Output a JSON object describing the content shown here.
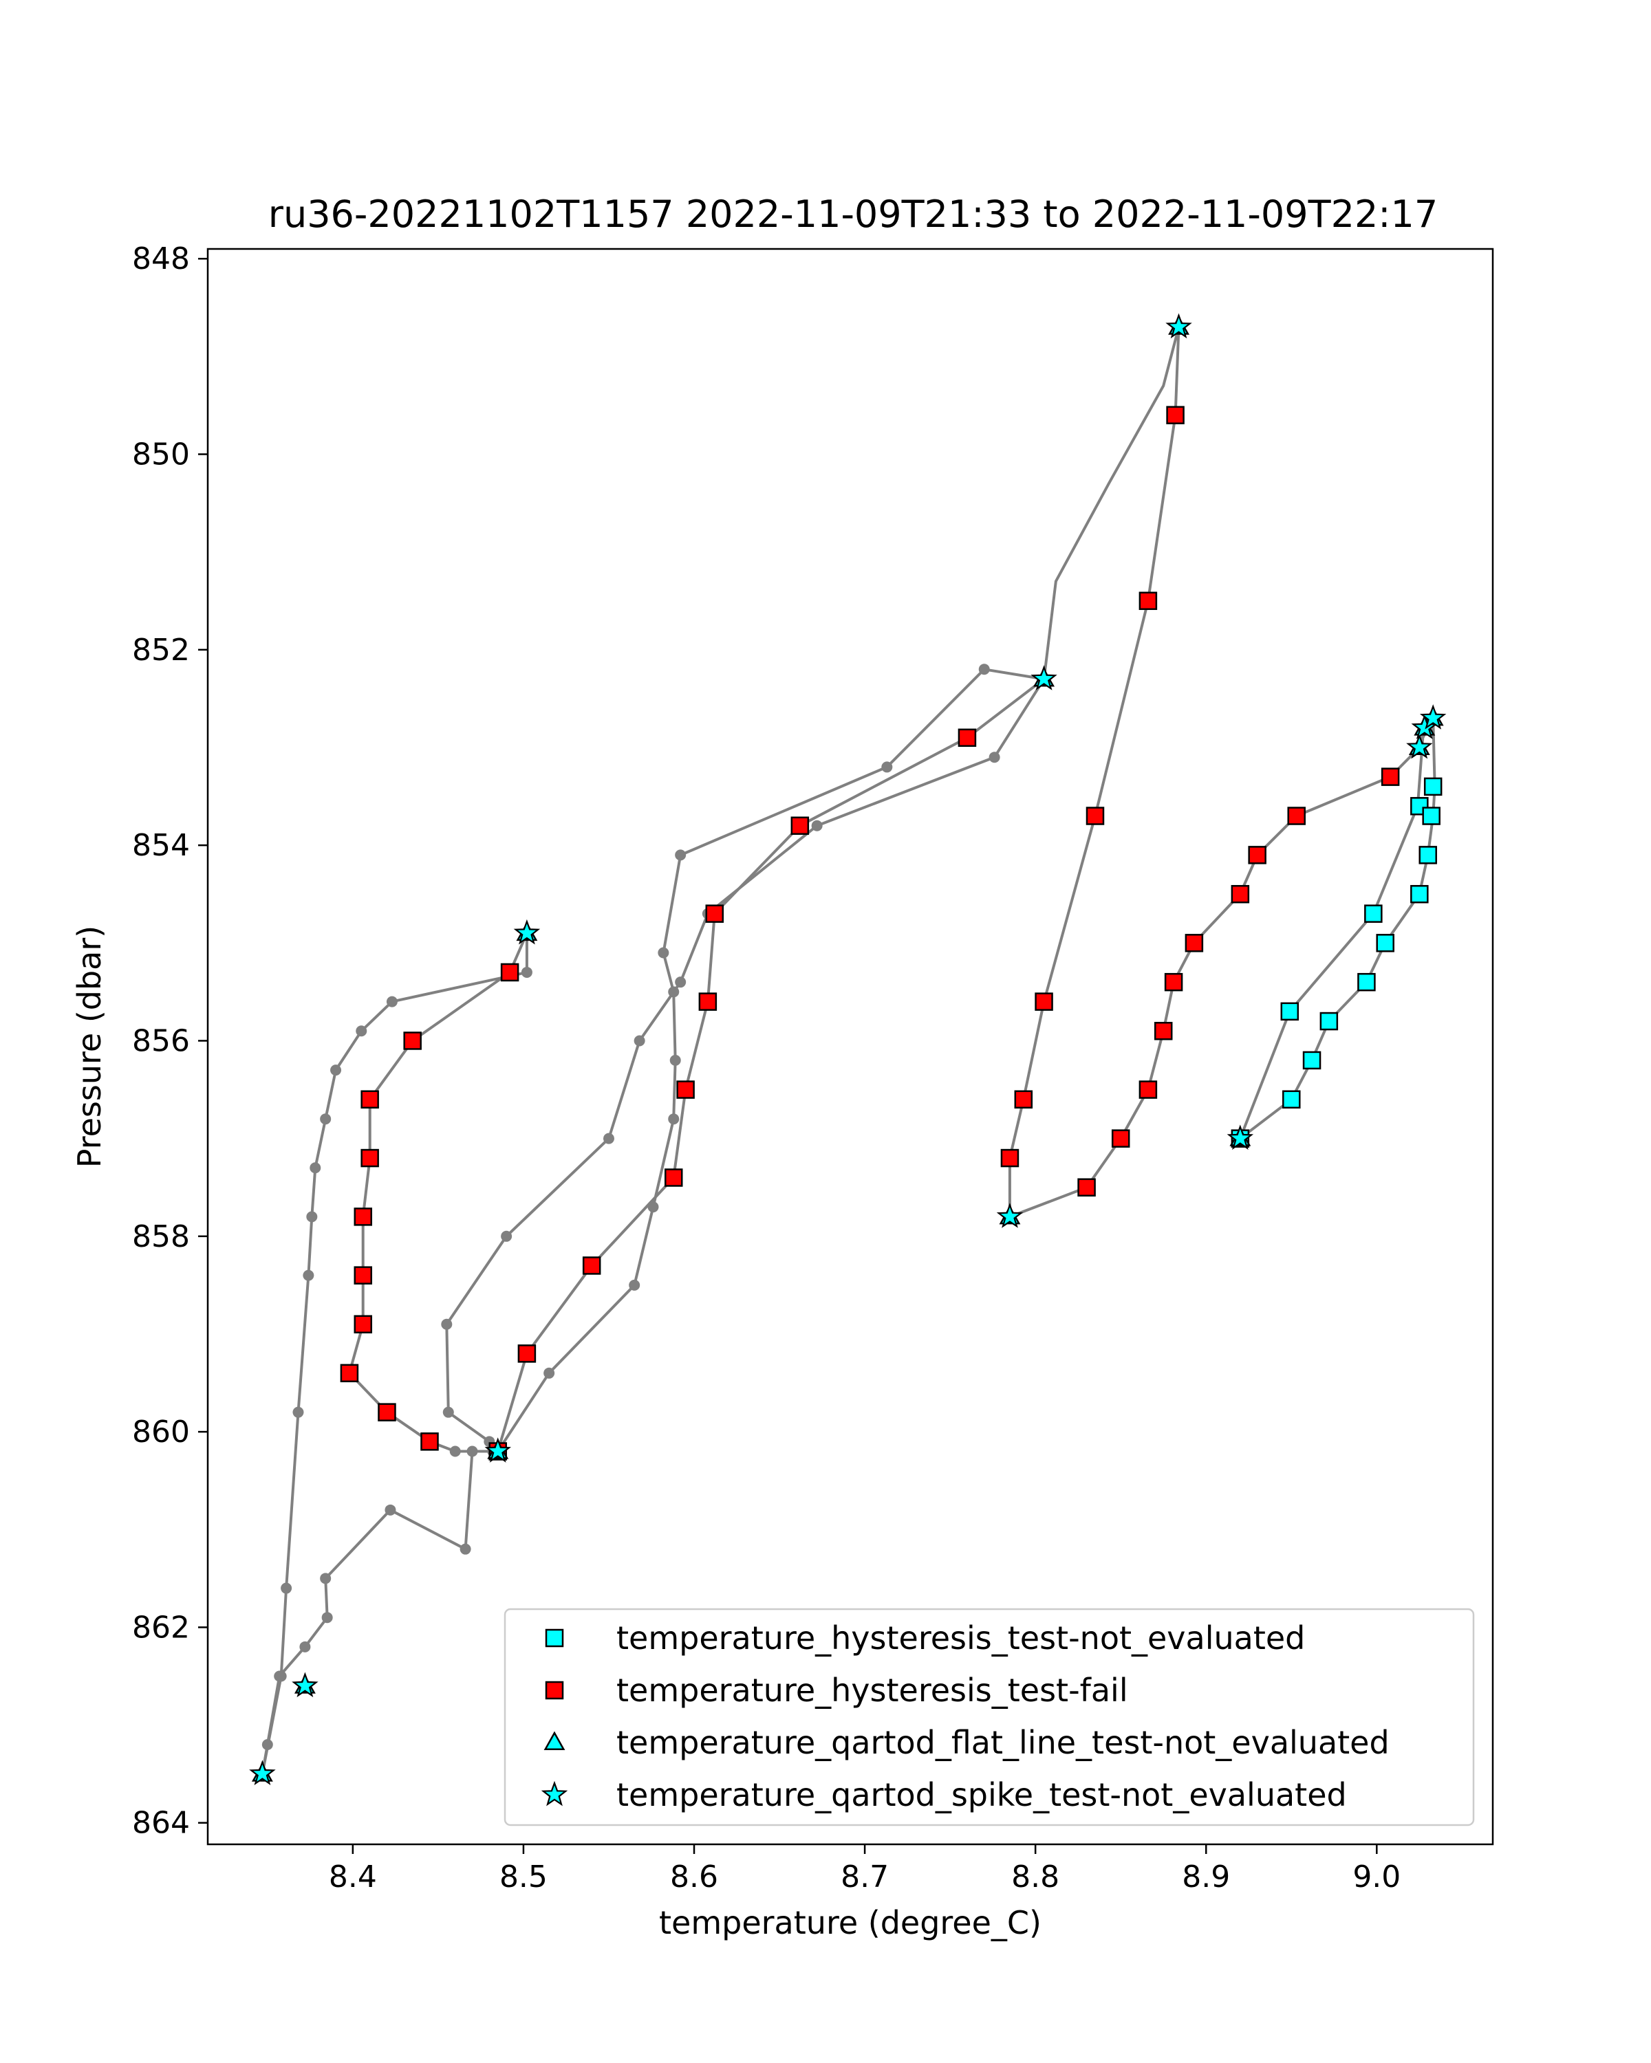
{
  "chart_data": {
    "type": "scatter",
    "title": "ru36-20221102T1157 2022-11-09T21:33 to 2022-11-09T22:17",
    "xlabel": "temperature (degree_C)",
    "ylabel": "Pressure (dbar)",
    "xlim": [
      8.315,
      9.068
    ],
    "ylim": [
      864.22,
      847.9
    ],
    "y_inverted": true,
    "xticks": [
      "8.4",
      "8.5",
      "8.6",
      "8.7",
      "8.8",
      "8.9",
      "9.0"
    ],
    "xtick_values": [
      8.4,
      8.5,
      8.6,
      8.7,
      8.8,
      8.9,
      9.0
    ],
    "yticks": [
      "848",
      "850",
      "852",
      "854",
      "856",
      "858",
      "860",
      "862",
      "864"
    ],
    "ytick_values": [
      848,
      850,
      852,
      854,
      856,
      858,
      860,
      862,
      864
    ],
    "grid": false,
    "legend_position": "lower-right",
    "profile_line_color": "#808080",
    "profile": [
      [
        8.347,
        863.5
      ],
      [
        8.35,
        863.2
      ],
      [
        8.357,
        862.5
      ],
      [
        8.372,
        862.2
      ],
      [
        8.385,
        861.9
      ],
      [
        8.384,
        861.5
      ],
      [
        8.422,
        860.8
      ],
      [
        8.466,
        861.2
      ],
      [
        8.47,
        860.2
      ],
      [
        8.485,
        860.2
      ],
      [
        8.515,
        859.4
      ],
      [
        8.565,
        858.5
      ],
      [
        8.576,
        857.7
      ],
      [
        8.588,
        856.8
      ],
      [
        8.589,
        856.2
      ],
      [
        8.588,
        855.5
      ],
      [
        8.582,
        855.1
      ],
      [
        8.592,
        854.1
      ],
      [
        8.713,
        853.2
      ],
      [
        8.77,
        852.2
      ],
      [
        8.805,
        852.3
      ],
      [
        8.776,
        853.1
      ],
      [
        8.672,
        853.8
      ],
      [
        8.608,
        854.7
      ],
      [
        8.592,
        855.4
      ],
      [
        8.568,
        856.0
      ],
      [
        8.55,
        857.0
      ],
      [
        8.49,
        858.0
      ],
      [
        8.455,
        858.9
      ],
      [
        8.456,
        859.8
      ],
      [
        8.48,
        860.1
      ],
      [
        8.482,
        860.2
      ],
      [
        8.46,
        860.2
      ],
      [
        8.445,
        860.1
      ],
      [
        8.42,
        859.8
      ],
      [
        8.398,
        859.4
      ],
      [
        8.406,
        858.9
      ],
      [
        8.406,
        858.4
      ],
      [
        8.406,
        857.8
      ],
      [
        8.41,
        857.2
      ],
      [
        8.41,
        856.6
      ],
      [
        8.435,
        856.0
      ],
      [
        8.492,
        855.3
      ],
      [
        8.502,
        854.9
      ],
      [
        8.502,
        855.3
      ],
      [
        8.423,
        855.6
      ],
      [
        8.405,
        855.9
      ],
      [
        8.39,
        856.3
      ],
      [
        8.384,
        856.8
      ],
      [
        8.378,
        857.3
      ],
      [
        8.376,
        857.8
      ],
      [
        8.374,
        858.4
      ],
      [
        8.368,
        859.8
      ],
      [
        8.361,
        861.6
      ],
      [
        8.358,
        862.5
      ],
      [
        8.347,
        863.5
      ]
    ],
    "profile2": [
      [
        8.485,
        860.2
      ],
      [
        8.502,
        859.2
      ],
      [
        8.54,
        858.3
      ],
      [
        8.588,
        857.4
      ],
      [
        8.595,
        856.5
      ],
      [
        8.608,
        855.6
      ],
      [
        8.612,
        854.7
      ],
      [
        8.662,
        853.8
      ],
      [
        8.76,
        852.9
      ],
      [
        8.805,
        852.3
      ],
      [
        8.812,
        851.3
      ],
      [
        8.843,
        850.3
      ],
      [
        8.875,
        849.3
      ],
      [
        8.884,
        848.7
      ],
      [
        8.882,
        849.6
      ],
      [
        8.866,
        851.5
      ],
      [
        8.835,
        853.7
      ],
      [
        8.805,
        855.6
      ],
      [
        8.793,
        856.6
      ],
      [
        8.785,
        857.2
      ],
      [
        8.785,
        857.8
      ],
      [
        8.83,
        857.5
      ],
      [
        8.85,
        857.0
      ],
      [
        8.866,
        856.5
      ],
      [
        8.875,
        855.9
      ],
      [
        8.881,
        855.4
      ],
      [
        8.893,
        855.0
      ],
      [
        8.92,
        854.5
      ],
      [
        8.93,
        854.1
      ],
      [
        8.953,
        853.7
      ],
      [
        9.008,
        853.3
      ],
      [
        9.025,
        853.0
      ],
      [
        9.028,
        852.8
      ],
      [
        9.033,
        852.7
      ],
      [
        9.027,
        852.9
      ],
      [
        9.024,
        853.6
      ],
      [
        8.998,
        854.7
      ],
      [
        8.949,
        855.7
      ],
      [
        8.92,
        857.0
      ],
      [
        8.95,
        856.6
      ],
      [
        8.962,
        856.2
      ],
      [
        8.972,
        855.8
      ],
      [
        8.994,
        855.4
      ],
      [
        9.005,
        855.0
      ],
      [
        9.025,
        854.5
      ],
      [
        9.03,
        854.1
      ],
      [
        9.033,
        853.7
      ],
      [
        9.034,
        853.4
      ],
      [
        9.033,
        852.7
      ]
    ],
    "series": [
      {
        "name": "temperature_hysteresis_test-not_evaluated",
        "marker": "square",
        "color": "#00ffff",
        "points": [
          [
            9.033,
            853.4
          ],
          [
            9.025,
            853.6
          ],
          [
            9.032,
            853.7
          ],
          [
            9.03,
            854.1
          ],
          [
            8.998,
            854.7
          ],
          [
            9.025,
            854.5
          ],
          [
            9.005,
            855.0
          ],
          [
            8.994,
            855.4
          ],
          [
            8.949,
            855.7
          ],
          [
            8.972,
            855.8
          ],
          [
            8.962,
            856.2
          ],
          [
            8.95,
            856.6
          ],
          [
            8.92,
            857.0
          ]
        ]
      },
      {
        "name": "temperature_hysteresis_test-fail",
        "marker": "square",
        "color": "#ff0000",
        "points": [
          [
            8.882,
            849.6
          ],
          [
            8.866,
            851.5
          ],
          [
            8.76,
            852.9
          ],
          [
            8.835,
            853.7
          ],
          [
            8.662,
            853.8
          ],
          [
            8.612,
            854.7
          ],
          [
            8.608,
            855.6
          ],
          [
            8.595,
            856.5
          ],
          [
            8.588,
            857.4
          ],
          [
            8.54,
            858.3
          ],
          [
            8.502,
            859.2
          ],
          [
            8.485,
            860.2
          ],
          [
            8.492,
            855.3
          ],
          [
            8.435,
            856.0
          ],
          [
            8.41,
            856.6
          ],
          [
            8.41,
            857.2
          ],
          [
            8.406,
            857.8
          ],
          [
            8.406,
            858.4
          ],
          [
            8.406,
            858.9
          ],
          [
            8.398,
            859.4
          ],
          [
            8.42,
            859.8
          ],
          [
            8.445,
            860.1
          ],
          [
            8.805,
            855.6
          ],
          [
            8.793,
            856.6
          ],
          [
            8.785,
            857.2
          ],
          [
            8.83,
            857.5
          ],
          [
            8.85,
            857.0
          ],
          [
            8.866,
            856.5
          ],
          [
            8.875,
            855.9
          ],
          [
            8.881,
            855.4
          ],
          [
            8.893,
            855.0
          ],
          [
            8.92,
            854.5
          ],
          [
            8.93,
            854.1
          ],
          [
            8.953,
            853.7
          ],
          [
            9.008,
            853.3
          ]
        ]
      },
      {
        "name": "temperature_qartod_flat_line_test-not_evaluated",
        "marker": "triangle",
        "color": "#00ffff",
        "points": [
          [
            8.884,
            848.7
          ],
          [
            8.805,
            852.3
          ],
          [
            8.502,
            854.9
          ],
          [
            8.485,
            860.2
          ],
          [
            8.372,
            862.6
          ],
          [
            8.347,
            863.5
          ],
          [
            8.785,
            857.8
          ],
          [
            8.92,
            857.0
          ],
          [
            9.025,
            853.0
          ],
          [
            9.028,
            852.8
          ],
          [
            9.033,
            852.7
          ]
        ]
      },
      {
        "name": "temperature_qartod_spike_test-not_evaluated",
        "marker": "star",
        "color": "#00ffff",
        "points": [
          [
            8.884,
            848.7
          ],
          [
            8.805,
            852.3
          ],
          [
            8.502,
            854.9
          ],
          [
            8.485,
            860.2
          ],
          [
            8.372,
            862.6
          ],
          [
            8.347,
            863.5
          ],
          [
            8.785,
            857.8
          ],
          [
            8.92,
            857.0
          ],
          [
            9.025,
            853.0
          ],
          [
            9.028,
            852.8
          ],
          [
            9.033,
            852.7
          ]
        ]
      }
    ]
  }
}
